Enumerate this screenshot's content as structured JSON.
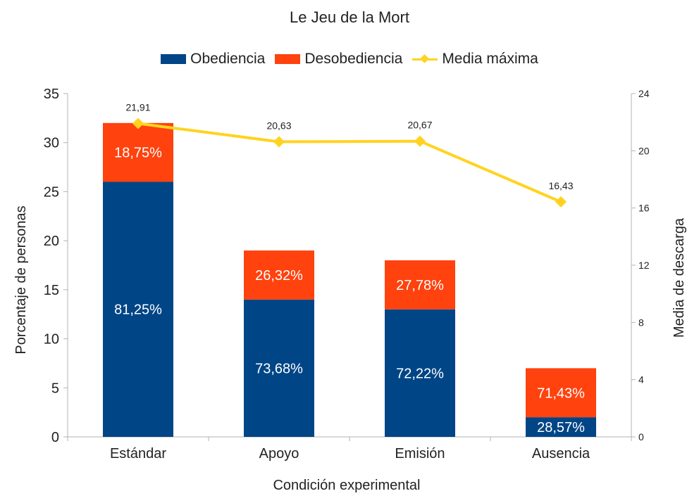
{
  "chart_data": {
    "type": "bar",
    "stacked": true,
    "title": "Le Jeu de la Mort",
    "xlabel": "Condición experimental",
    "ylabel": "Porcentaje de personas",
    "y2label": "Media de descarga",
    "categories": [
      "Estándar",
      "Apoyo",
      "Emisión",
      "Ausencia"
    ],
    "ylim": [
      0,
      35
    ],
    "yticks": [
      0,
      5,
      10,
      15,
      20,
      25,
      30,
      35
    ],
    "y2lim": [
      0,
      24
    ],
    "y2ticks": [
      0,
      4,
      8,
      12,
      16,
      20,
      24
    ],
    "grid": false,
    "legend_position": "top-center",
    "series": [
      {
        "name": "Obediencia",
        "type": "bar",
        "axis": "left",
        "color": "#004586",
        "values": [
          26,
          14,
          13,
          2
        ],
        "labels": [
          "81,25%",
          "73,68%",
          "72,22%",
          "28,57%"
        ]
      },
      {
        "name": "Desobediencia",
        "type": "bar",
        "axis": "left",
        "color": "#ff420e",
        "values": [
          6,
          5,
          5,
          5
        ],
        "labels": [
          "18,75%",
          "26,32%",
          "27,78%",
          "71,43%"
        ]
      },
      {
        "name": "Media máxima",
        "type": "line",
        "axis": "right",
        "color": "#ffd320",
        "values": [
          21.91,
          20.63,
          20.67,
          16.43
        ],
        "labels": [
          "21,91",
          "20,63",
          "20,67",
          "16,43"
        ]
      }
    ]
  }
}
